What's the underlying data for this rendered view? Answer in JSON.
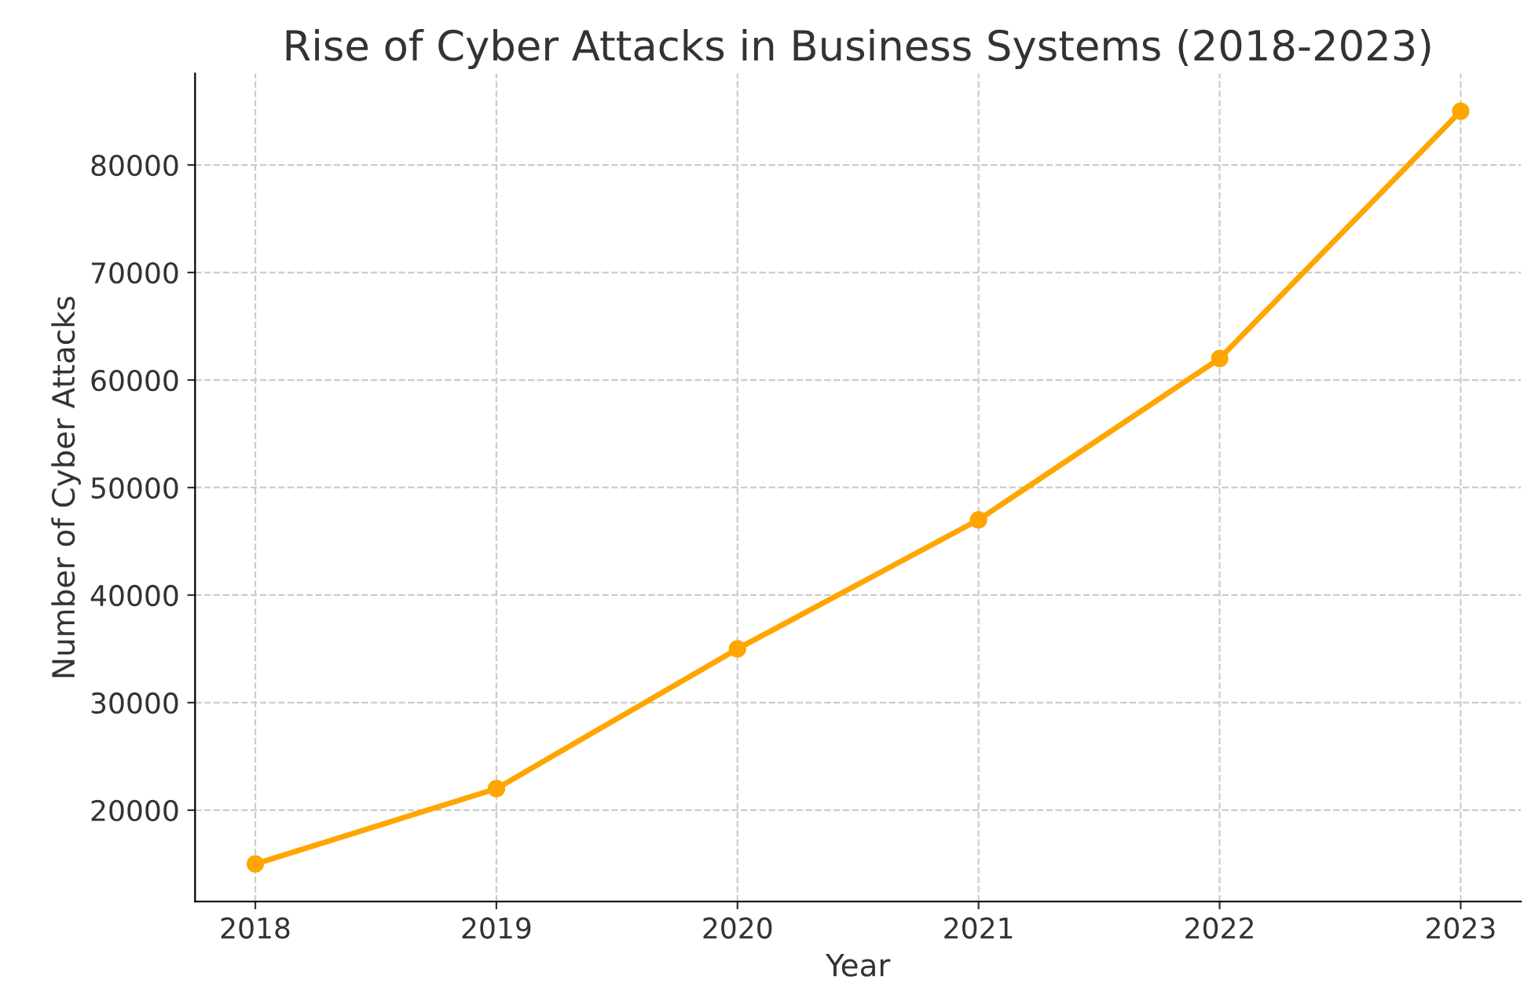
{
  "chart_data": {
    "type": "line",
    "title": "Rise of Cyber Attacks in Business Systems (2018-2023)",
    "xlabel": "Year",
    "ylabel": "Number of Cyber Attacks",
    "x": [
      2018,
      2019,
      2020,
      2021,
      2022,
      2023
    ],
    "series": [
      {
        "color": "#ffa500",
        "values": [
          15000,
          22000,
          35000,
          47000,
          62000,
          85000
        ]
      }
    ],
    "xlim": [
      2017.75,
      2023.25
    ],
    "xticks": [
      2018,
      2019,
      2020,
      2021,
      2022,
      2023
    ],
    "ylim": [
      11500,
      88500
    ],
    "yticks": [
      20000,
      30000,
      40000,
      50000,
      60000,
      70000,
      80000
    ],
    "grid": true,
    "marker": "circle",
    "line_style": "solid",
    "legend": false
  }
}
